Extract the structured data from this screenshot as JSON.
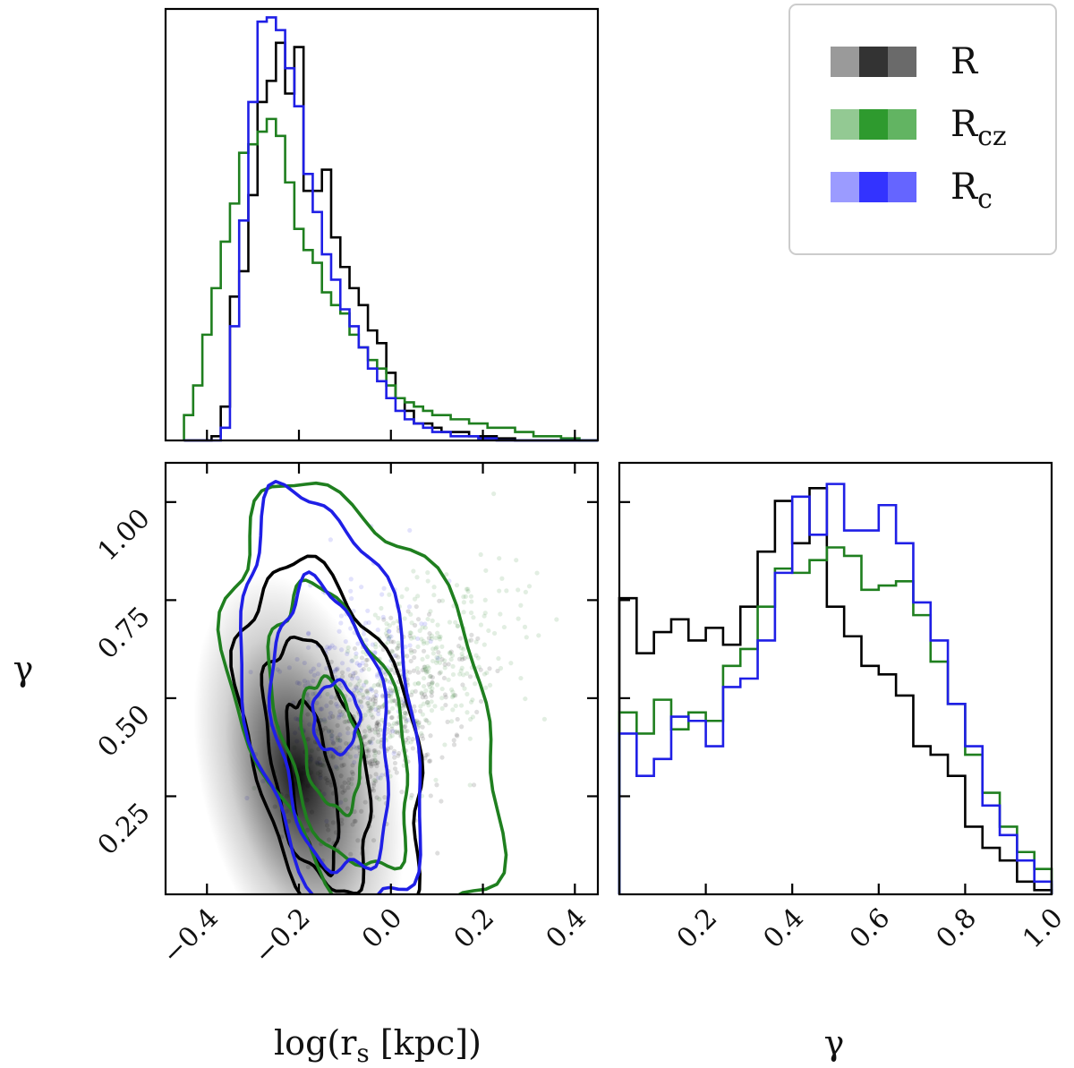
{
  "figure": {
    "type": "corner",
    "title": ""
  },
  "legend": {
    "entries": [
      {
        "key": "R",
        "label": "R",
        "sub": "",
        "colors": [
          "#9a9a9a",
          "#333333",
          "#6a6a6a"
        ]
      },
      {
        "key": "Rcz",
        "label": "R",
        "sub": "cz",
        "colors": [
          "#93c993",
          "#2e9a2e",
          "#62b462"
        ]
      },
      {
        "key": "Rc",
        "label": "R",
        "sub": "c",
        "colors": [
          "#9b9bff",
          "#3333ff",
          "#6565ff"
        ]
      }
    ]
  },
  "series_colors": {
    "R": "#000000",
    "Rcz": "#1f7f1f",
    "Rc": "#1f1fe6"
  },
  "chart_data": [
    {
      "id": "hist_log_rs",
      "type": "histogram",
      "xlim": [
        -0.49,
        0.45
      ],
      "xticks": [
        -0.4,
        -0.2,
        0.0,
        0.2,
        0.4
      ],
      "bin_edges": [
        -0.45,
        -0.43,
        -0.41,
        -0.39,
        -0.37,
        -0.35,
        -0.33,
        -0.31,
        -0.29,
        -0.27,
        -0.25,
        -0.23,
        -0.21,
        -0.19,
        -0.17,
        -0.15,
        -0.13,
        -0.11,
        -0.09,
        -0.07,
        -0.05,
        -0.03,
        -0.01,
        0.01,
        0.03,
        0.05,
        0.07,
        0.09,
        0.11,
        0.13,
        0.15,
        0.17,
        0.19,
        0.21,
        0.23,
        0.25,
        0.27,
        0.29,
        0.31,
        0.33,
        0.35,
        0.37,
        0.39,
        0.41,
        0.43,
        0.45
      ],
      "series": [
        {
          "name": "R",
          "values": [
            0,
            0,
            0,
            0.01,
            0.08,
            0.34,
            0.4,
            0.58,
            0.8,
            0.85,
            0.94,
            0.82,
            0.93,
            0.59,
            0.59,
            0.64,
            0.48,
            0.41,
            0.36,
            0.32,
            0.26,
            0.23,
            0.16,
            0.1,
            0.07,
            0.04,
            0.04,
            0.03,
            0.02,
            0.02,
            0.02,
            0.01,
            0.01,
            0.01,
            0.005,
            0.005,
            0,
            0,
            0,
            0,
            0,
            0,
            0,
            0,
            0
          ]
        },
        {
          "name": "Rcz",
          "values": [
            0.06,
            0.13,
            0.25,
            0.36,
            0.47,
            0.56,
            0.68,
            0.7,
            0.73,
            0.76,
            0.72,
            0.61,
            0.5,
            0.45,
            0.42,
            0.35,
            0.32,
            0.3,
            0.25,
            0.22,
            0.19,
            0.17,
            0.13,
            0.1,
            0.09,
            0.08,
            0.07,
            0.06,
            0.06,
            0.05,
            0.05,
            0.04,
            0.04,
            0.03,
            0.03,
            0.03,
            0.02,
            0.02,
            0.01,
            0.01,
            0.01,
            0.005,
            0.005,
            0,
            0
          ]
        },
        {
          "name": "Rc",
          "values": [
            0,
            0,
            0,
            0,
            0.03,
            0.27,
            0.52,
            0.8,
            0.99,
            1.0,
            0.97,
            0.88,
            0.79,
            0.63,
            0.54,
            0.44,
            0.38,
            0.31,
            0.27,
            0.22,
            0.17,
            0.14,
            0.1,
            0.07,
            0.05,
            0.04,
            0.03,
            0.02,
            0.02,
            0.01,
            0.01,
            0.01,
            0.005,
            0.005,
            0,
            0,
            0,
            0,
            0,
            0,
            0,
            0,
            0,
            0,
            0
          ]
        }
      ]
    },
    {
      "id": "scatter_contour",
      "type": "scatter",
      "xlabel": "log(r",
      "xlabel_sub": "s",
      "xlabel_tail": " [kpc])",
      "ylabel": "γ",
      "xlim": [
        -0.49,
        0.45
      ],
      "ylim": [
        0.0,
        1.1
      ],
      "xticks": [
        -0.4,
        -0.2,
        0.0,
        0.2,
        0.4
      ],
      "xtick_labels": [
        "−0.4",
        "−0.2",
        "0.0",
        "0.2",
        "0.4"
      ],
      "yticks": [
        0.25,
        0.5,
        0.75,
        1.0
      ],
      "ytick_labels": [
        "0.25",
        "0.50",
        "0.75",
        "1.00"
      ],
      "density_peak": {
        "x": -0.2,
        "y": 0.12
      },
      "contours": {
        "R": [
          {
            "cx": -0.17,
            "cy": 0.28,
            "rx": 0.045,
            "ry": 0.22,
            "rot": -10
          },
          {
            "cx": -0.16,
            "cy": 0.33,
            "rx": 0.1,
            "ry": 0.33,
            "rot": -12
          },
          {
            "cx": -0.13,
            "cy": 0.38,
            "rx": 0.18,
            "ry": 0.47,
            "rot": -14
          }
        ],
        "Rcz": [
          {
            "cx": -0.13,
            "cy": 0.38,
            "rx": 0.06,
            "ry": 0.17,
            "rot": -10
          },
          {
            "cx": -0.11,
            "cy": 0.42,
            "rx": 0.13,
            "ry": 0.37,
            "rot": -15
          },
          {
            "cx": -0.06,
            "cy": 0.48,
            "rx": 0.26,
            "ry": 0.58,
            "rot": -20
          }
        ],
        "Rc": [
          {
            "cx": -0.12,
            "cy": 0.45,
            "rx": 0.05,
            "ry": 0.09,
            "rot": 0
          },
          {
            "cx": -0.13,
            "cy": 0.42,
            "rx": 0.12,
            "ry": 0.37,
            "rot": -8
          },
          {
            "cx": -0.13,
            "cy": 0.48,
            "rx": 0.18,
            "ry": 0.55,
            "rot": -10
          }
        ]
      }
    },
    {
      "id": "hist_gamma",
      "type": "histogram",
      "xlabel": "γ",
      "xlim": [
        0.0,
        1.0
      ],
      "xticks": [
        0.2,
        0.4,
        0.6,
        0.8,
        1.0
      ],
      "xtick_labels": [
        "0.2",
        "0.4",
        "0.6",
        "0.8",
        "1.0"
      ],
      "bin_edges": [
        0.0,
        0.04,
        0.08,
        0.12,
        0.16,
        0.2,
        0.24,
        0.28,
        0.32,
        0.36,
        0.4,
        0.44,
        0.48,
        0.52,
        0.56,
        0.6,
        0.64,
        0.68,
        0.72,
        0.76,
        0.8,
        0.84,
        0.88,
        0.92,
        0.96,
        1.0
      ],
      "series": [
        {
          "name": "R",
          "values": [
            0.7,
            0.57,
            0.62,
            0.65,
            0.6,
            0.63,
            0.59,
            0.68,
            0.81,
            0.93,
            0.83,
            0.96,
            0.68,
            0.61,
            0.54,
            0.52,
            0.47,
            0.35,
            0.33,
            0.28,
            0.16,
            0.11,
            0.08,
            0.03,
            0.01
          ]
        },
        {
          "name": "Rcz",
          "values": [
            0.43,
            0.38,
            0.46,
            0.39,
            0.43,
            0.41,
            0.54,
            0.58,
            0.68,
            0.77,
            0.76,
            0.79,
            0.82,
            0.8,
            0.72,
            0.73,
            0.74,
            0.66,
            0.55,
            0.45,
            0.33,
            0.24,
            0.16,
            0.1,
            0.06
          ]
        },
        {
          "name": "Rc",
          "values": [
            0.38,
            0.28,
            0.32,
            0.42,
            0.41,
            0.35,
            0.49,
            0.51,
            0.6,
            0.76,
            0.94,
            0.85,
            0.97,
            0.86,
            0.86,
            0.92,
            0.83,
            0.69,
            0.6,
            0.45,
            0.35,
            0.21,
            0.14,
            0.08,
            0.03
          ]
        }
      ]
    }
  ]
}
